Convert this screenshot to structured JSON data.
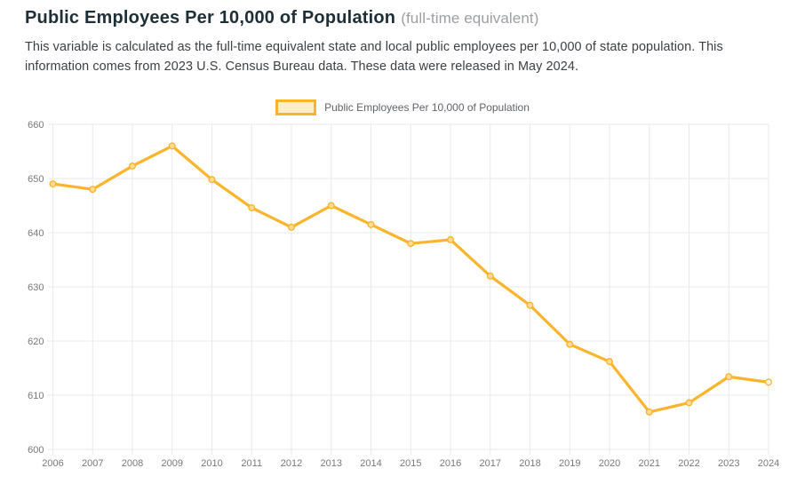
{
  "header": {
    "title": "Public Employees Per 10,000 of Population",
    "subtitle": "(full-time equivalent)",
    "description": "This variable is calculated as the full-time equivalent state and local public employees per 10,000 of state population. This information comes from 2023 U.S. Census Bureau data. These data were released in May 2024."
  },
  "legend": {
    "label": "Public Employees Per 10,000 of Population"
  },
  "colors": {
    "line": "#FBB42C",
    "point_fill": "#FDDC9A",
    "point_last_fill": "#FFFFFF",
    "legend_fill": "#FCEFC9",
    "legend_border": "#FBB42C",
    "title_text": "#1E2F38",
    "subtitle_text": "#9C9FA2",
    "body_text": "#3C4043",
    "grid": "#E9E9E9",
    "tick_text": "#77787B"
  },
  "chart_data": {
    "type": "line",
    "title": "Public Employees Per 10,000 of Population",
    "xlabel": "",
    "ylabel": "",
    "legend_position": "top",
    "grid": true,
    "categories": [
      "2006",
      "2007",
      "2008",
      "2009",
      "2010",
      "2011",
      "2012",
      "2013",
      "2014",
      "2015",
      "2016",
      "2017",
      "2018",
      "2019",
      "2020",
      "2021",
      "2022",
      "2023",
      "2024"
    ],
    "series": [
      {
        "name": "Public Employees Per 10,000 of Population",
        "values": [
          649,
          648,
          652.3,
          656,
          649.8,
          644.6,
          641,
          645,
          641.5,
          638,
          638.7,
          632,
          626.6,
          619.4,
          616.2,
          606.9,
          608.6,
          613.4,
          612.4
        ]
      }
    ],
    "ylim": [
      600,
      660
    ],
    "ytick_step": 10
  }
}
